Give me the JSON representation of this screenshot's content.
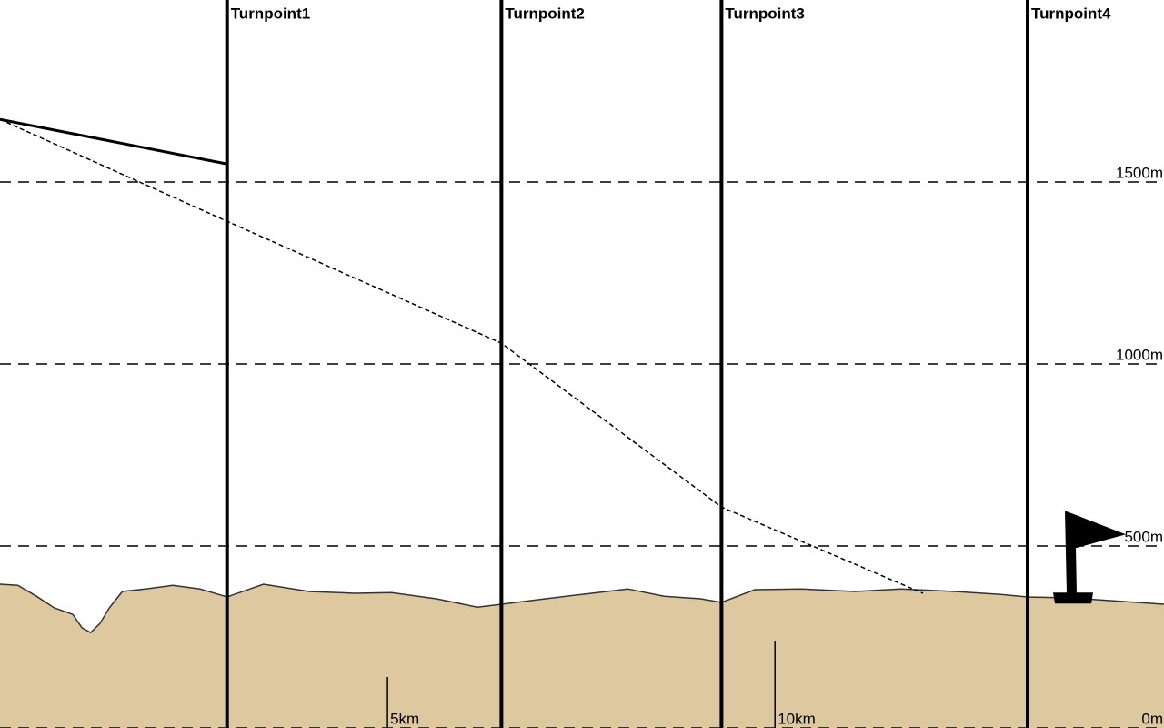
{
  "chart_data": {
    "type": "line",
    "xlim": [
      0,
      15.02
    ],
    "ylim": [
      0,
      2000
    ],
    "yticks": [
      {
        "value": 0,
        "label": "0m"
      },
      {
        "value": 500,
        "label": "500m"
      },
      {
        "value": 1000,
        "label": "1000m"
      },
      {
        "value": 1500,
        "label": "1500m"
      }
    ],
    "xticks": [
      {
        "value": 5,
        "label": "5km"
      },
      {
        "value": 10,
        "label": "10km"
      }
    ],
    "grid": true,
    "turnpoints": {
      "names": [
        "Turnpoint1",
        "Turnpoint2",
        "Turnpoint3",
        "Turnpoint4"
      ],
      "x": [
        2.93,
        6.47,
        9.31,
        13.26
      ]
    },
    "terrain": {
      "color": "#dec8a0",
      "x": [
        0,
        0.23,
        0.47,
        0.7,
        0.94,
        1.06,
        1.17,
        1.29,
        1.41,
        1.58,
        1.88,
        2.23,
        2.58,
        2.93,
        3.4,
        3.99,
        4.58,
        5.05,
        5.63,
        6.16,
        6.47,
        7.04,
        7.51,
        8.1,
        8.57,
        9.04,
        9.31,
        9.74,
        10.33,
        11.03,
        11.62,
        12.32,
        12.91,
        13.26,
        13.85,
        15.02
      ],
      "values": [
        395,
        392,
        362,
        330,
        312,
        275,
        262,
        287,
        330,
        375,
        382,
        392,
        382,
        360,
        395,
        375,
        370,
        372,
        355,
        332,
        340,
        355,
        367,
        382,
        362,
        355,
        345,
        380,
        382,
        375,
        382,
        375,
        367,
        360,
        357,
        340
      ]
    },
    "glide_path": {
      "x": [
        0,
        2.92
      ],
      "values": [
        1672,
        1550
      ]
    },
    "final_glide": {
      "x": [
        0,
        2.93,
        6.47,
        9.31,
        11.91
      ],
      "values": [
        1672,
        1392,
        1057,
        607,
        370
      ]
    }
  }
}
